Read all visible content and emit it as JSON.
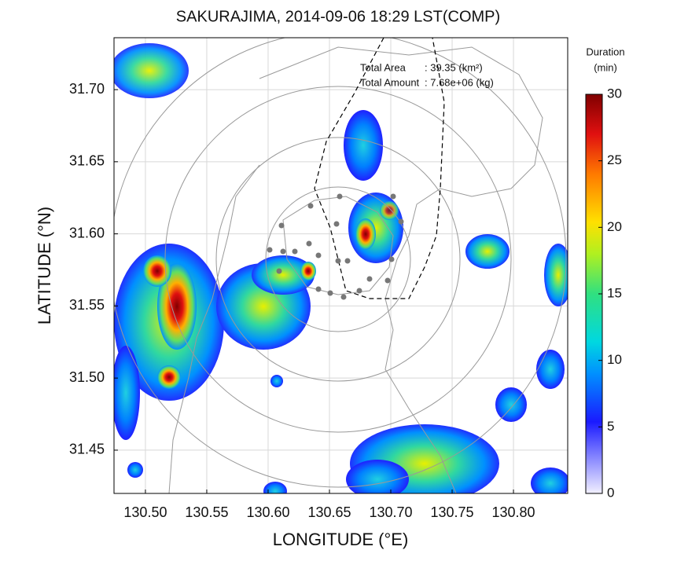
{
  "title": "SAKURAJIMA, 2014-09-06 18:29 LST(COMP)",
  "xaxis": {
    "label": "LONGITUDE (°E)",
    "lim": [
      130.4744,
      130.8442
    ],
    "ticks": [
      {
        "value": 130.5,
        "label": "130.50"
      },
      130.55,
      {
        "value": 130.6,
        "label": "130.60"
      },
      130.65,
      {
        "value": 130.7,
        "label": "130.70"
      },
      130.75,
      {
        "value": 130.8,
        "label": "130.80"
      }
    ]
  },
  "yaxis": {
    "label": "LATITUDE (°N)",
    "lim": [
      31.42,
      31.736
    ],
    "ticks": [
      31.45,
      {
        "value": 31.5,
        "label": "31.50"
      },
      31.55,
      {
        "value": 31.6,
        "label": "31.60"
      },
      31.65,
      {
        "value": 31.7,
        "label": "31.70"
      }
    ]
  },
  "annotation": {
    "area_label": "Total Area",
    "area_value": ": 39.35 (km²)",
    "amount_label": "Total Amount",
    "amount_value": ": 7.68e+06 (kg)"
  },
  "colorbar": {
    "title": "Duration",
    "unit": "(min)",
    "lim": [
      0,
      30
    ],
    "ticks": [
      0,
      5,
      10,
      15,
      20,
      25,
      30
    ]
  }
}
